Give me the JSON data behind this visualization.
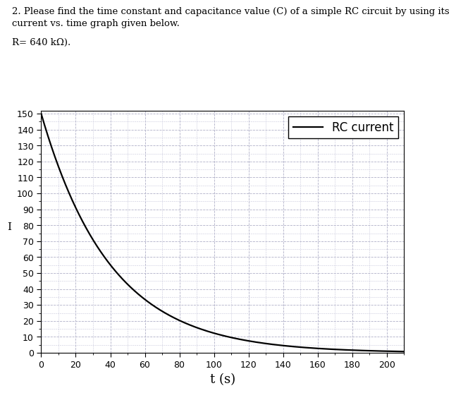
{
  "title_line1": "2. Please find the time constant and capacitance value (C) of a simple RC circuit by using its",
  "title_line2": "current vs. time graph given below.",
  "r_label": "R= 640 kΩ).",
  "xlabel": "t (s)",
  "ylabel": "I",
  "I0": 150,
  "tau": 40,
  "t_start": 0,
  "t_end": 210,
  "xlim": [
    0,
    210
  ],
  "ylim": [
    0,
    152
  ],
  "xticks": [
    0,
    20,
    40,
    60,
    80,
    100,
    120,
    140,
    160,
    180,
    200
  ],
  "yticks": [
    0,
    10,
    20,
    30,
    40,
    50,
    60,
    70,
    80,
    90,
    100,
    110,
    120,
    130,
    140,
    150
  ],
  "line_color": "#000000",
  "grid_major_color": "#b0b0c8",
  "grid_minor_color": "#c8c8dc",
  "bg_color": "#ffffff",
  "legend_label": "RC current",
  "legend_fontsize": 12,
  "title_fontsize": 9.5,
  "axis_label_fontsize": 13,
  "tick_fontsize": 9,
  "ylabel_fontsize": 11,
  "r_label_fontsize": 9.5
}
